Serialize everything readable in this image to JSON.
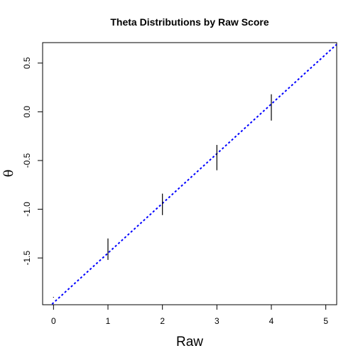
{
  "chart_data": {
    "type": "line",
    "title": "Theta Distributions by Raw Score",
    "xlabel": "Raw",
    "ylabel": "θ",
    "xlim": [
      -0.2,
      5.2
    ],
    "ylim": [
      -1.98,
      0.71
    ],
    "x_ticks": [
      0,
      1,
      2,
      3,
      4,
      5
    ],
    "y_ticks": [
      -1.5,
      -1.0,
      -0.5,
      0.0,
      0.5
    ],
    "y_tick_labels": [
      "-1.5",
      "-1.0",
      "-0.5",
      "0.0",
      "0.5"
    ],
    "grid": false,
    "series": [
      {
        "style": "vertical-interval",
        "color": "#000000",
        "points": [
          {
            "x": 0,
            "low": -1.9,
            "high": -1.9
          },
          {
            "x": 1,
            "low": -1.52,
            "high": -1.3
          },
          {
            "x": 2,
            "low": -1.06,
            "high": -0.84
          },
          {
            "x": 3,
            "low": -0.6,
            "high": -0.34
          },
          {
            "x": 4,
            "low": -0.09,
            "high": 0.18
          }
        ]
      },
      {
        "style": "reference-line",
        "color": "#0000ff",
        "dashed": true,
        "intercept": -1.96,
        "slope": 0.51
      }
    ]
  }
}
